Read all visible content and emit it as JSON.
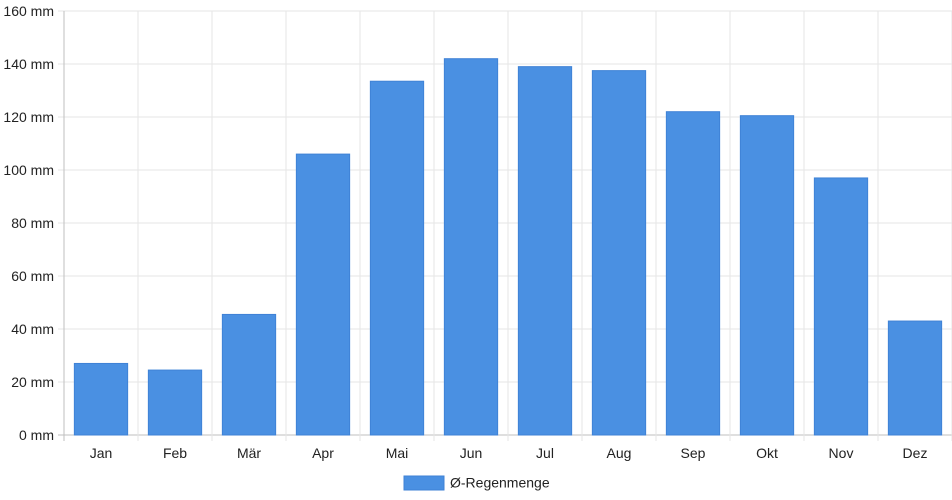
{
  "chart_data": {
    "type": "bar",
    "categories": [
      "Jan",
      "Feb",
      "Mär",
      "Apr",
      "Mai",
      "Jun",
      "Jul",
      "Aug",
      "Sep",
      "Okt",
      "Nov",
      "Dez"
    ],
    "series": [
      {
        "name": "Ø-Regenmenge",
        "values": [
          27,
          24.5,
          45.5,
          106,
          133.5,
          142,
          139,
          137.5,
          122,
          120.5,
          97,
          43
        ],
        "color": "#4a90e2"
      }
    ],
    "yticks": [
      0,
      20,
      40,
      60,
      80,
      100,
      120,
      140,
      160
    ],
    "ytick_unit": "mm",
    "ylim": [
      0,
      160
    ],
    "grid": true,
    "legend_position": "bottom-center"
  }
}
